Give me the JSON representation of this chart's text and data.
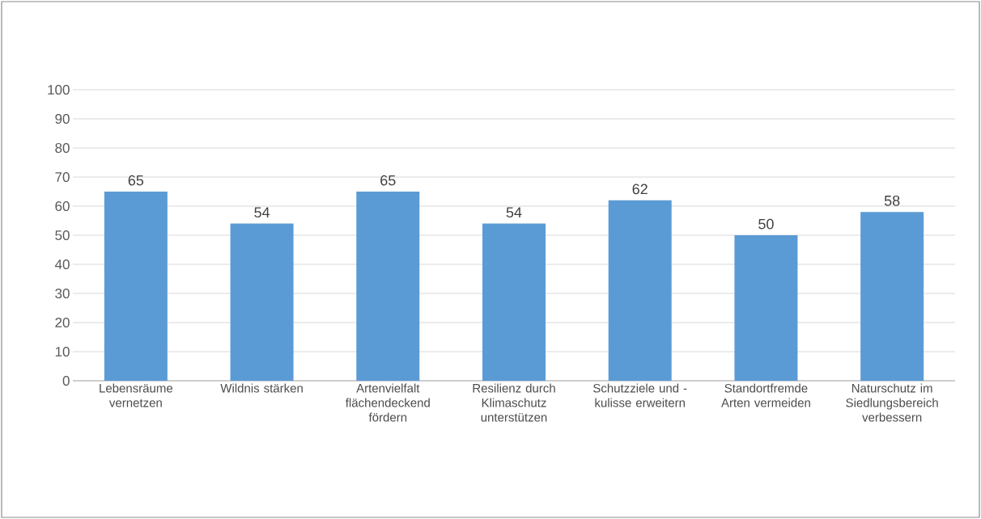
{
  "chart_data": {
    "type": "bar",
    "categories": [
      "Lebensräume vernetzen",
      "Wildnis stärken",
      "Artenvielfalt flächendeckend fördern",
      "Resilienz durch Klimaschutz unterstützen",
      "Schutzziele und - kulisse erweitern",
      "Standortfremde Arten vermeiden",
      "Naturschutz im Siedlungsbereich verbessern"
    ],
    "values": [
      65,
      54,
      65,
      54,
      62,
      50,
      58
    ],
    "color": "#5b9bd5",
    "ylim": [
      0,
      100
    ],
    "yticks": [
      0,
      10,
      20,
      30,
      40,
      50,
      60,
      70,
      80,
      90,
      100
    ],
    "grid": "y",
    "data_labels": true
  }
}
